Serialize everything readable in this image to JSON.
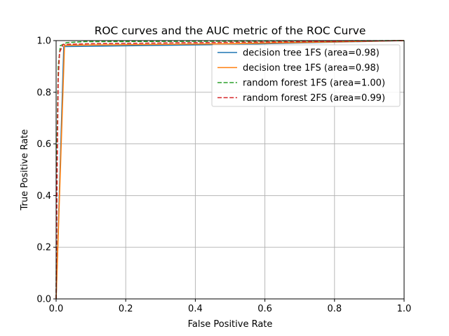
{
  "chart_data": {
    "type": "line",
    "title": "ROC curves and the AUC metric of the ROC Curve",
    "xlabel": "False Positive Rate",
    "ylabel": "True Positive Rate",
    "xlim": [
      0.0,
      1.0
    ],
    "ylim": [
      0.0,
      1.0
    ],
    "xticks": [
      "0.0",
      "0.2",
      "0.4",
      "0.6",
      "0.8",
      "1.0"
    ],
    "yticks": [
      "0.0",
      "0.2",
      "0.4",
      "0.6",
      "0.8",
      "1.0"
    ],
    "grid": true,
    "legend_position": "top-right",
    "series": [
      {
        "name": "decision tree 1FS (area=0.98)",
        "color": "#1f77b4",
        "style": "solid",
        "x": [
          0.0,
          0.022,
          0.5,
          1.0
        ],
        "y": [
          0.0,
          0.977,
          0.985,
          1.0
        ]
      },
      {
        "name": "decision tree 1FS (area=0.98)",
        "color": "#ff7f0e",
        "style": "solid",
        "x": [
          0.0,
          0.024,
          0.5,
          1.0
        ],
        "y": [
          0.0,
          0.982,
          0.988,
          1.0
        ]
      },
      {
        "name": "random forest 1FS (area=1.00)",
        "color": "#2ca02c",
        "style": "dashed",
        "x": [
          0.0,
          0.002,
          0.006,
          0.012,
          0.03,
          0.08,
          1.0
        ],
        "y": [
          0.0,
          0.55,
          0.9,
          0.98,
          0.992,
          0.996,
          1.0
        ]
      },
      {
        "name": "random forest 2FS (area=0.99)",
        "color": "#d62728",
        "style": "dashed",
        "x": [
          0.0,
          0.003,
          0.006,
          0.01,
          0.02,
          0.1,
          1.0
        ],
        "y": [
          0.0,
          0.5,
          0.85,
          0.955,
          0.985,
          0.988,
          1.0
        ]
      }
    ]
  }
}
